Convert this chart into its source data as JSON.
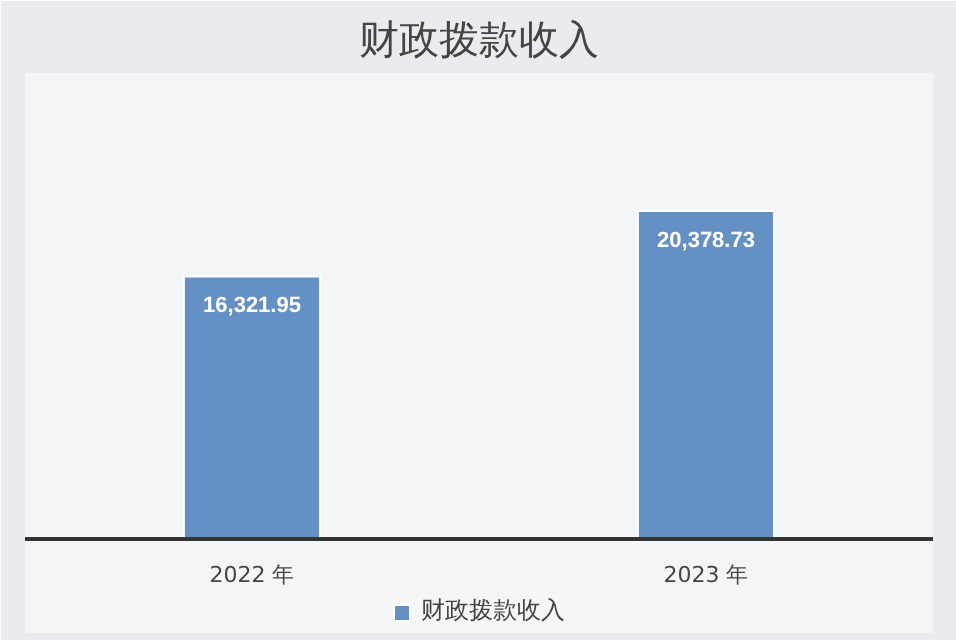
{
  "chart_data": {
    "type": "bar",
    "title": "财政拨款收入",
    "categories": [
      "2022 年",
      "2023 年"
    ],
    "series": [
      {
        "name": "财政拨款收入",
        "color": "#6590c4",
        "values": [
          16321.95,
          20378.73
        ],
        "value_labels": [
          "16,321.95",
          "20,378.73"
        ]
      }
    ],
    "legend": "bottom"
  }
}
